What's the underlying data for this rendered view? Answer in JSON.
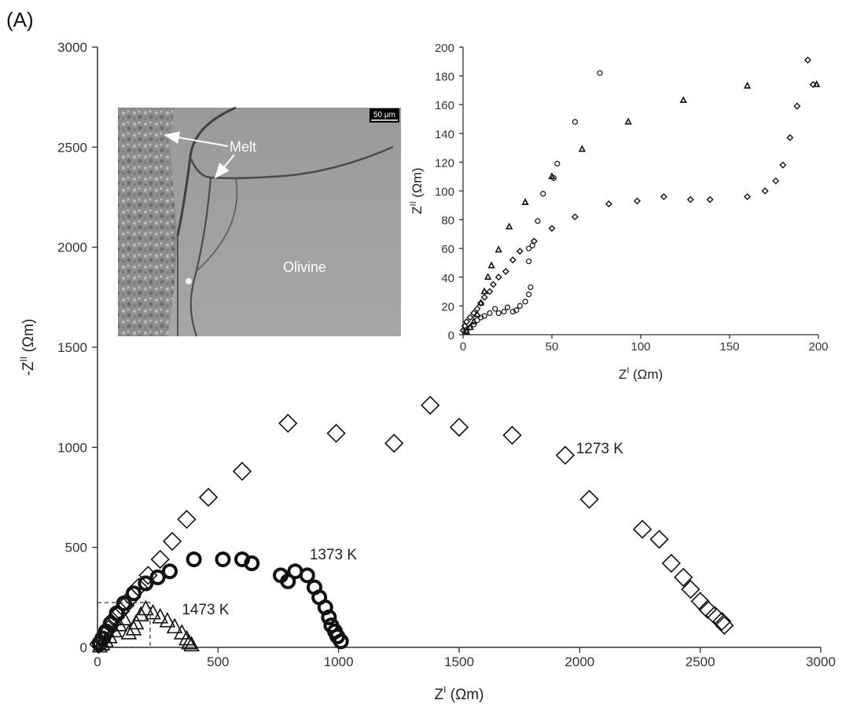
{
  "panel_label": "(A)",
  "chart_data": [
    {
      "type": "scatter",
      "xlabel_base": "Z",
      "xlabel_sup": "I",
      "xlabel_unit": " (Ωm)",
      "ylabel_base": "-Z",
      "ylabel_sup": "II",
      "ylabel_unit": " (Ωm)",
      "xlim": [
        0,
        3000
      ],
      "ylim": [
        0,
        3000
      ],
      "xticks": [
        "0",
        "500",
        "1000",
        "1500",
        "2000",
        "2500",
        "3000"
      ],
      "yticks": [
        "0",
        "500",
        "1000",
        "1500",
        "2000",
        "2500",
        "3000"
      ],
      "grid": false,
      "series": [
        {
          "name": "1273 K",
          "marker": "diamond",
          "label_at": [
            1985,
            970
          ],
          "x": [
            2600,
            2590,
            2560,
            2530,
            2500,
            2460,
            2430,
            2380,
            2330,
            2260,
            2040,
            1940,
            1720,
            1500,
            1380,
            1230,
            990,
            790,
            600,
            460,
            370,
            310,
            260,
            210,
            170,
            140,
            115,
            95,
            75,
            60,
            45,
            30,
            18,
            10,
            5
          ],
          "y": [
            110,
            130,
            160,
            190,
            230,
            290,
            350,
            420,
            540,
            590,
            740,
            960,
            1060,
            1100,
            1210,
            1020,
            1070,
            1120,
            880,
            750,
            640,
            530,
            440,
            360,
            300,
            250,
            210,
            180,
            150,
            120,
            90,
            60,
            40,
            25,
            15
          ]
        },
        {
          "name": "1373 K",
          "marker": "circle",
          "label_at": [
            880,
            440
          ],
          "x": [
            1010,
            995,
            985,
            970,
            960,
            945,
            920,
            900,
            870,
            820,
            790,
            760,
            640,
            600,
            520,
            400,
            300,
            250,
            200,
            150,
            110,
            80,
            55,
            35,
            20,
            10
          ],
          "y": [
            30,
            55,
            80,
            110,
            150,
            200,
            250,
            300,
            360,
            380,
            330,
            360,
            420,
            440,
            440,
            440,
            380,
            350,
            320,
            270,
            220,
            170,
            120,
            80,
            45,
            20
          ]
        },
        {
          "name": "1473 K",
          "marker": "triangle",
          "label_at": [
            350,
            165
          ],
          "x": [
            390,
            380,
            370,
            350,
            320,
            290,
            260,
            230,
            200,
            180,
            160,
            150,
            130,
            110,
            90,
            70,
            50,
            35,
            20,
            10
          ],
          "y": [
            10,
            20,
            40,
            70,
            100,
            130,
            150,
            170,
            190,
            160,
            120,
            90,
            70,
            140,
            110,
            80,
            50,
            30,
            15,
            5
          ]
        }
      ],
      "annotations": [
        "Melt",
        "Melt",
        "Olivine",
        "50 μm"
      ]
    },
    {
      "type": "scatter",
      "inset": true,
      "xlabel_base": "Z",
      "xlabel_sup": "I",
      "xlabel_unit": " (Ωm)",
      "ylabel_base": "Z",
      "ylabel_sup": "II",
      "ylabel_unit": " (Ωm)",
      "xlim": [
        0,
        200
      ],
      "ylim": [
        0,
        200
      ],
      "xticks": [
        "0",
        "50",
        "100",
        "150",
        "200"
      ],
      "yticks": [
        "0",
        "20",
        "40",
        "60",
        "80",
        "100",
        "120",
        "140",
        "160",
        "180",
        "200"
      ],
      "grid": false,
      "series": [
        {
          "name": "1273 K",
          "marker": "diamond",
          "x": [
            194,
            197,
            188,
            184,
            180,
            176,
            170,
            160,
            139,
            128,
            113,
            98,
            82,
            63,
            50,
            40,
            32,
            28,
            24,
            20,
            17,
            15,
            12,
            10,
            8,
            6,
            4,
            2,
            1,
            0
          ],
          "y": [
            191,
            174,
            159,
            137,
            118,
            107,
            100,
            96,
            94,
            94,
            96,
            93,
            91,
            82,
            74,
            65,
            58,
            52,
            44,
            40,
            35,
            30,
            26,
            22,
            18,
            15,
            12,
            9,
            6,
            3
          ]
        },
        {
          "name": "1373 K",
          "marker": "circle",
          "x": [
            77,
            63,
            53,
            51,
            45,
            42,
            39,
            37,
            37,
            38,
            37,
            35,
            32,
            30,
            28,
            25,
            23,
            20,
            18,
            15,
            12,
            10,
            8,
            6,
            4,
            2
          ],
          "y": [
            182,
            148,
            119,
            109,
            98,
            79,
            62,
            60,
            51,
            33,
            28,
            23,
            20,
            17,
            16,
            19,
            16,
            15,
            18,
            15,
            13,
            12,
            10,
            7,
            5,
            3
          ]
        },
        {
          "name": "1473 K",
          "marker": "triangle",
          "x": [
            199,
            160,
            124,
            93,
            67,
            50,
            35,
            26,
            20,
            16,
            14,
            12,
            10,
            8,
            6,
            4,
            2
          ],
          "y": [
            174,
            173,
            163,
            148,
            129,
            110,
            92,
            75,
            59,
            48,
            40,
            30,
            22,
            14,
            9,
            5,
            2
          ]
        }
      ]
    }
  ]
}
